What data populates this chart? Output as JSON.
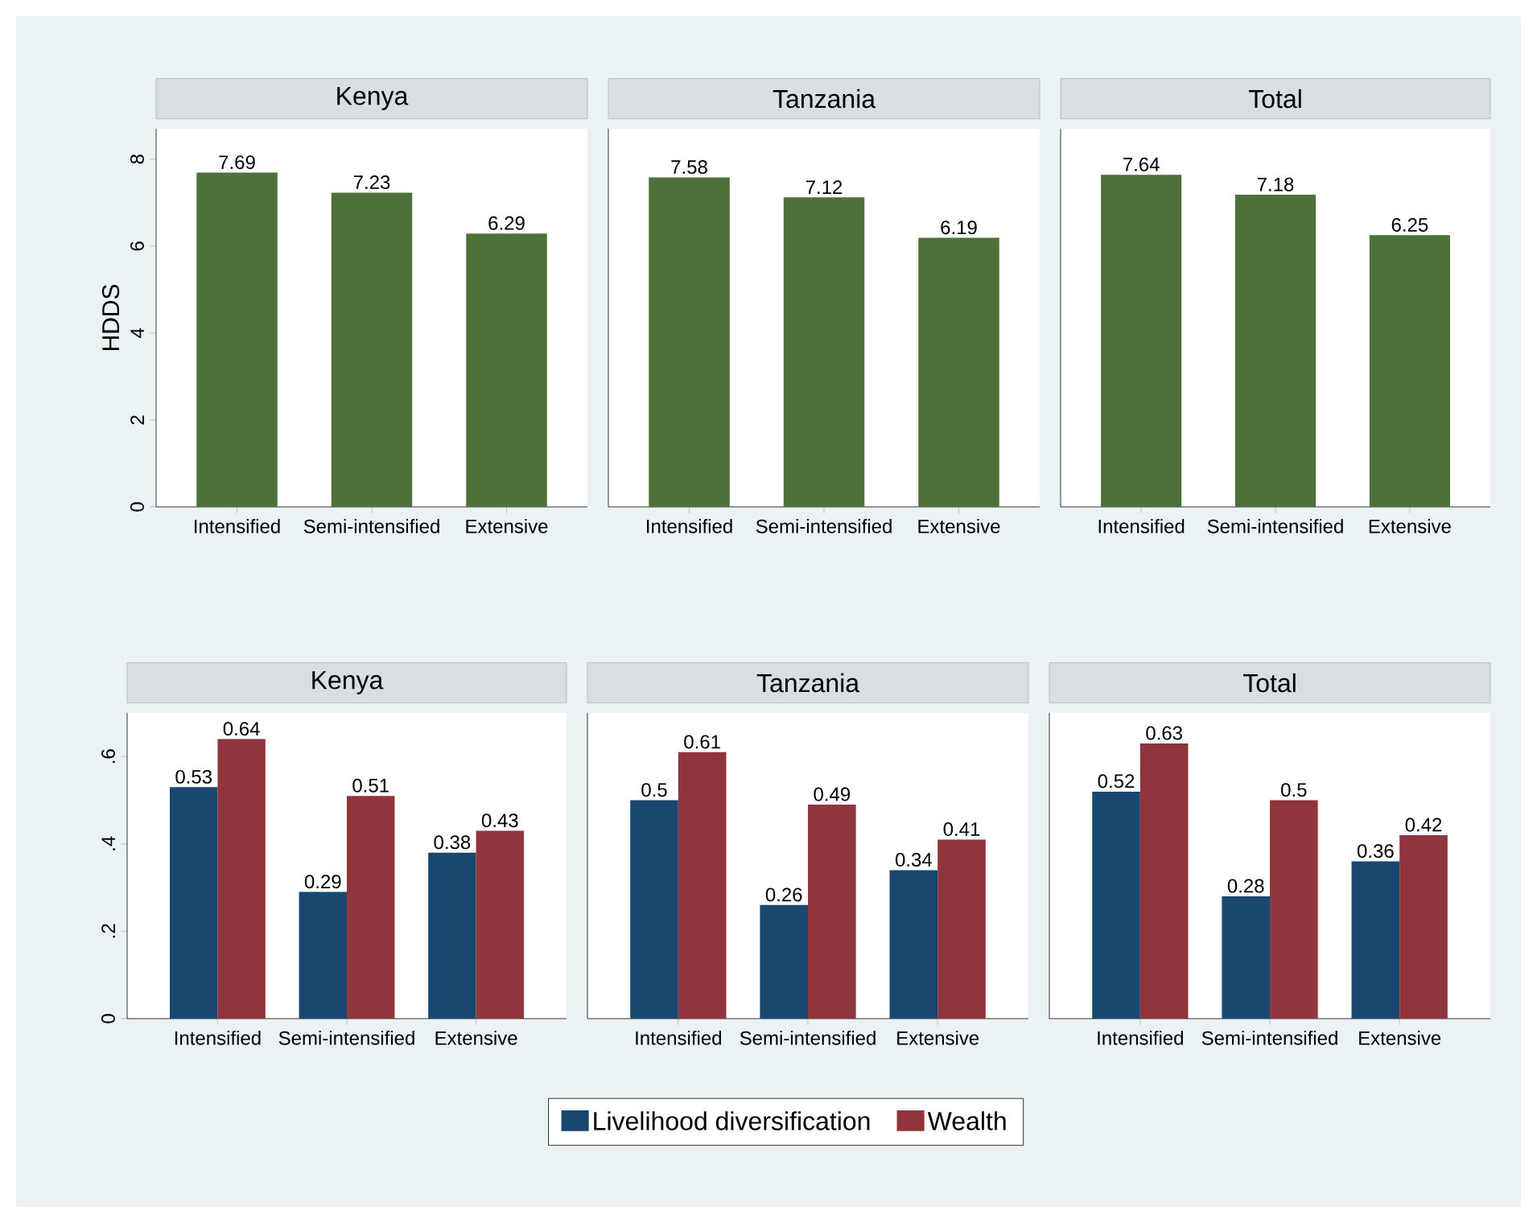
{
  "chart_data": [
    {
      "type": "bar",
      "title": "Kenya",
      "ylabel": "HDDS",
      "categories": [
        "Intensified",
        "Semi-intensified",
        "Extensive"
      ],
      "values": [
        7.69,
        7.23,
        6.29
      ],
      "color": "#4e7139",
      "ylim": [
        0,
        8.7
      ],
      "yticks": [
        0,
        2,
        4,
        6,
        8
      ],
      "data_labels": true
    },
    {
      "type": "bar",
      "title": "Tanzania",
      "categories": [
        "Intensified",
        "Semi-intensified",
        "Extensive"
      ],
      "values": [
        7.58,
        7.12,
        6.19
      ],
      "color": "#4e7139",
      "ylim": [
        0,
        8.7
      ],
      "tick_labels": "x",
      "data_labels": true
    },
    {
      "type": "bar",
      "title": "Total",
      "categories": [
        "Intensified",
        "Semi-intensified",
        "Extensive"
      ],
      "values": [
        7.64,
        7.18,
        6.25
      ],
      "color": "#4e7139",
      "ylim": [
        0,
        8.7
      ],
      "tick_labels": "x",
      "data_labels": true
    },
    {
      "type": "bar",
      "title": "Kenya",
      "categories": [
        "Intensified",
        "Semi-intensified",
        "Extensive"
      ],
      "series": [
        {
          "color": "#1a476f",
          "values": [
            0.53,
            0.29,
            0.38
          ]
        },
        {
          "color": "#90353b",
          "values": [
            0.64,
            0.51,
            0.43
          ]
        }
      ],
      "ylim": [
        0,
        0.7
      ],
      "yticks": [
        0,
        {
          "value": 0.2,
          "label": ".2"
        },
        {
          "value": 0.4,
          "label": ".4"
        },
        {
          "value": 0.6,
          "label": ".6"
        }
      ],
      "data_labels": true
    },
    {
      "type": "bar",
      "title": "Tanzania",
      "categories": [
        "Intensified",
        "Semi-intensified",
        "Extensive"
      ],
      "series": [
        {
          "name": "Livelihood diversification",
          "color": "#1a476f",
          "values": [
            0.5,
            0.26,
            0.34
          ]
        },
        {
          "name": "Wealth",
          "color": "#90353b",
          "values": [
            0.61,
            0.49,
            0.41
          ]
        }
      ],
      "ylim": [
        0,
        0.7
      ],
      "tick_labels": "x",
      "legend": "bottom",
      "data_labels": true
    },
    {
      "type": "bar",
      "title": "Total",
      "categories": [
        "Intensified",
        "Semi-intensified",
        "Extensive"
      ],
      "series": [
        {
          "color": "#1a476f",
          "values": [
            0.52,
            0.28,
            0.36
          ]
        },
        {
          "color": "#90353b",
          "values": [
            0.63,
            0.5,
            0.42
          ]
        }
      ],
      "ylim": [
        0,
        0.7
      ],
      "tick_labels": "x",
      "data_labels": true
    }
  ]
}
